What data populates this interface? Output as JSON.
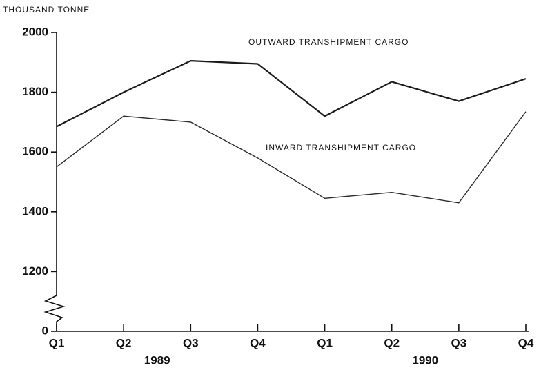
{
  "chart_data": {
    "type": "line",
    "y_axis_label": "THOUSAND TONNE",
    "categories": [
      "Q1",
      "Q2",
      "Q3",
      "Q4",
      "Q1",
      "Q2",
      "Q3",
      "Q4"
    ],
    "groups": [
      {
        "label": "1989",
        "span": [
          0,
          3
        ]
      },
      {
        "label": "1990",
        "span": [
          4,
          7
        ]
      }
    ],
    "series": [
      {
        "name": "OUTWARD TRANSHIPMENT CARGO",
        "color": "#1a1a1a",
        "width": 2.2,
        "values": [
          1685,
          1800,
          1905,
          1895,
          1720,
          1835,
          1770,
          1845
        ]
      },
      {
        "name": "INWARD TRANSHIPMENT CARGO",
        "color": "#2a2a2a",
        "width": 1.4,
        "values": [
          1550,
          1720,
          1700,
          1580,
          1445,
          1465,
          1430,
          1735
        ]
      }
    ],
    "ylim": [
      0,
      2000
    ],
    "y_break": [
      0,
      1200
    ],
    "yticks": [
      0,
      1200,
      1400,
      1600,
      1800,
      2000
    ],
    "grid": false
  }
}
